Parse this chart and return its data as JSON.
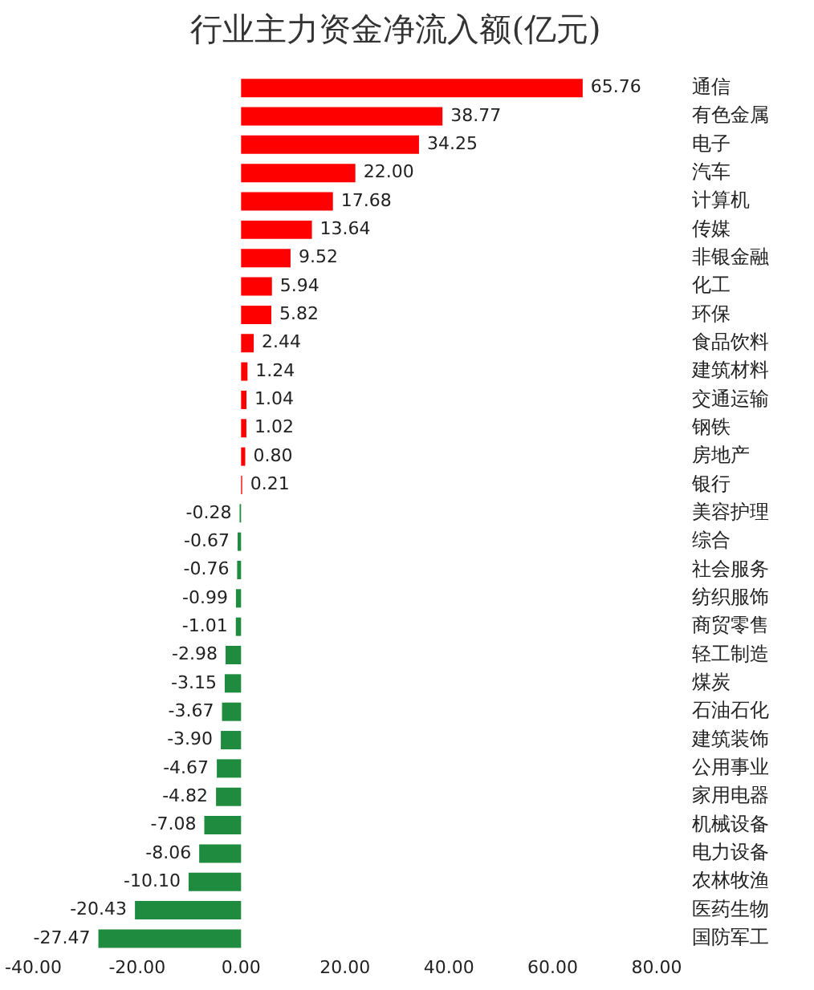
{
  "chart_data": {
    "type": "bar",
    "orientation": "horizontal",
    "title": "行业主力资金净流入额(亿元)",
    "categories": [
      "通信",
      "有色金属",
      "电子",
      "汽车",
      "计算机",
      "传媒",
      "非银金融",
      "化工",
      "环保",
      "食品饮料",
      "建筑材料",
      "交通运输",
      "钢铁",
      "房地产",
      "银行",
      "美容护理",
      "综合",
      "社会服务",
      "纺织服饰",
      "商贸零售",
      "轻工制造",
      "煤炭",
      "石油石化",
      "建筑装饰",
      "公用事业",
      "家用电器",
      "机械设备",
      "电力设备",
      "农林牧渔",
      "医药生物",
      "国防军工"
    ],
    "values": [
      65.76,
      38.77,
      34.25,
      22.0,
      17.68,
      13.64,
      9.52,
      5.94,
      5.82,
      2.44,
      1.24,
      1.04,
      1.02,
      0.8,
      0.21,
      -0.28,
      -0.67,
      -0.76,
      -0.99,
      -1.01,
      -2.98,
      -3.15,
      -3.67,
      -3.9,
      -4.67,
      -4.82,
      -7.08,
      -8.06,
      -10.1,
      -20.43,
      -27.47
    ],
    "value_labels": [
      "65.76",
      "38.77",
      "34.25",
      "22.00",
      "17.68",
      "13.64",
      "9.52",
      "5.94",
      "5.82",
      "2.44",
      "1.24",
      "1.04",
      "1.02",
      "0.80",
      "0.21",
      "-0.28",
      "-0.67",
      "-0.76",
      "-0.99",
      "-1.01",
      "-2.98",
      "-3.15",
      "-3.67",
      "-3.90",
      "-4.67",
      "-4.82",
      "-7.08",
      "-8.06",
      "-10.10",
      "-20.43",
      "-27.47"
    ],
    "colors": [
      "#ff0000",
      "#ff0000",
      "#ff0000",
      "#ff0000",
      "#ff0000",
      "#ff0000",
      "#ff0000",
      "#ff0000",
      "#ff0000",
      "#ff0000",
      "#ff0000",
      "#ff0000",
      "#ff0000",
      "#ff0000",
      "#ff0000",
      "#1e8b3e",
      "#1e8b3e",
      "#1e8b3e",
      "#1e8b3e",
      "#1e8b3e",
      "#1e8b3e",
      "#1e8b3e",
      "#1e8b3e",
      "#1e8b3e",
      "#1e8b3e",
      "#1e8b3e",
      "#1e8b3e",
      "#1e8b3e",
      "#1e8b3e",
      "#1e8b3e",
      "#1e8b3e"
    ],
    "xlim": [
      -40,
      80
    ],
    "xticks": [
      {
        "value": -40,
        "label": "-40.00"
      },
      {
        "value": -20,
        "label": "-20.00"
      },
      {
        "value": 0,
        "label": "0.00"
      },
      {
        "value": 20,
        "label": "20.00"
      },
      {
        "value": 40,
        "label": "40.00"
      },
      {
        "value": 60,
        "label": "60.00"
      },
      {
        "value": 80,
        "label": "80.00"
      }
    ],
    "grid": false
  }
}
